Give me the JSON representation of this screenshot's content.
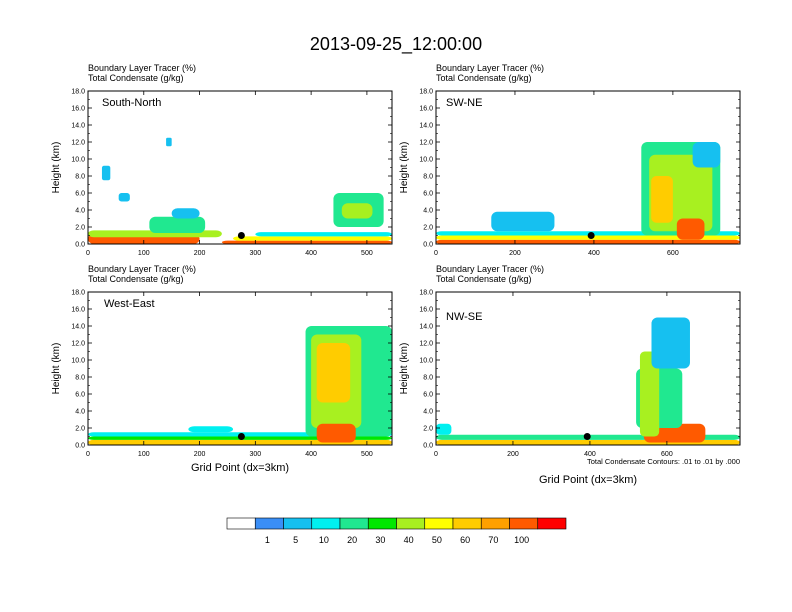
{
  "title": "2013-09-25_12:00:00",
  "note": "Total Condensate Contours: .01 to .01 by .000",
  "colorbar": {
    "labels": [
      "1",
      "5",
      "10",
      "20",
      "30",
      "40",
      "50",
      "60",
      "70",
      "100"
    ],
    "colors": [
      "#ffffff",
      "#3a8ef6",
      "#16c0f0",
      "#00f0f0",
      "#20e890",
      "#00e800",
      "#a8f020",
      "#ffff00",
      "#ffcc00",
      "#ffa000",
      "#ff5a00",
      "#ff0000"
    ]
  },
  "chart_data": [
    {
      "type": "heatmap",
      "panel_label": "South-North",
      "subtitle_1": "Boundary Layer Tracer   (%)",
      "subtitle_2": "Total Condensate   (g/kg)",
      "ylabel": "Height (km)",
      "xlabel": "",
      "xlim": [
        0,
        545
      ],
      "ylim": [
        0,
        18
      ],
      "xticks": [
        0,
        100,
        200,
        300,
        400,
        500
      ],
      "yticks": [
        "0.0",
        "2.0",
        "4.0",
        "6.0",
        "8.0",
        "10.0",
        "12.0",
        "14.0",
        "16.0",
        "18.0"
      ],
      "marker": [
        275,
        1.0
      ],
      "features": [
        {
          "x": [
            0,
            200
          ],
          "z": [
            0,
            1.2
          ],
          "level": 100
        },
        {
          "x": [
            0,
            240
          ],
          "z": [
            0.8,
            1.6
          ],
          "level": 40
        },
        {
          "x": [
            240,
            545
          ],
          "z": [
            0,
            0.4
          ],
          "level": 100
        },
        {
          "x": [
            260,
            545
          ],
          "z": [
            0.4,
            0.9
          ],
          "level": 50
        },
        {
          "x": [
            300,
            545
          ],
          "z": [
            0.9,
            1.4
          ],
          "level": 10
        },
        {
          "x": [
            110,
            210
          ],
          "z": [
            1.3,
            3.2
          ],
          "level": 20
        },
        {
          "x": [
            440,
            530
          ],
          "z": [
            2.0,
            6.0
          ],
          "level": 20
        },
        {
          "x": [
            455,
            510
          ],
          "z": [
            3.0,
            4.8
          ],
          "level": 40
        },
        {
          "x": [
            25,
            40
          ],
          "z": [
            7.5,
            9.2
          ],
          "level": 5
        },
        {
          "x": [
            55,
            75
          ],
          "z": [
            5.0,
            6.0
          ],
          "level": 5
        },
        {
          "x": [
            140,
            150
          ],
          "z": [
            11.5,
            12.5
          ],
          "level": 5
        },
        {
          "x": [
            150,
            200
          ],
          "z": [
            3.0,
            4.2
          ],
          "level": 5
        }
      ]
    },
    {
      "type": "heatmap",
      "panel_label": "SW-NE",
      "subtitle_1": "Boundary Layer Tracer   (%)",
      "subtitle_2": "Total Condensate   (g/kg)",
      "ylabel": "Height (km)",
      "xlabel": "",
      "xlim": [
        0,
        770
      ],
      "ylim": [
        0,
        18
      ],
      "xticks": [
        0,
        200,
        400,
        600
      ],
      "yticks": [
        "0.0",
        "2.0",
        "4.0",
        "6.0",
        "8.0",
        "10.0",
        "12.0",
        "14.0",
        "16.0",
        "18.0"
      ],
      "marker": [
        393,
        1.0
      ],
      "features": [
        {
          "x": [
            0,
            770
          ],
          "z": [
            0,
            0.5
          ],
          "level": 100
        },
        {
          "x": [
            0,
            770
          ],
          "z": [
            0.5,
            1.0
          ],
          "level": 50
        },
        {
          "x": [
            0,
            770
          ],
          "z": [
            1.0,
            1.5
          ],
          "level": 10
        },
        {
          "x": [
            140,
            300
          ],
          "z": [
            1.5,
            3.8
          ],
          "level": 5
        },
        {
          "x": [
            520,
            720
          ],
          "z": [
            1.0,
            12.0
          ],
          "level": 20
        },
        {
          "x": [
            540,
            700
          ],
          "z": [
            1.5,
            10.5
          ],
          "level": 40
        },
        {
          "x": [
            545,
            600
          ],
          "z": [
            2.5,
            8.0
          ],
          "level": 60
        },
        {
          "x": [
            610,
            680
          ],
          "z": [
            0.5,
            3.0
          ],
          "level": 100
        },
        {
          "x": [
            650,
            720
          ],
          "z": [
            9.0,
            12.0
          ],
          "level": 5
        }
      ]
    },
    {
      "type": "heatmap",
      "panel_label": "West-East",
      "subtitle_1": "Boundary Layer Tracer   (%)",
      "subtitle_2": "Total Condensate   (g/kg)",
      "ylabel": "Height (km)",
      "xlabel": "Grid Point (dx=3km)",
      "xlim": [
        0,
        545
      ],
      "ylim": [
        0,
        18
      ],
      "xticks": [
        0,
        100,
        200,
        300,
        400,
        500
      ],
      "yticks": [
        "0.0",
        "2.0",
        "4.0",
        "6.0",
        "8.0",
        "10.0",
        "12.0",
        "14.0",
        "16.0",
        "18.0"
      ],
      "marker": [
        275,
        1.0
      ],
      "features": [
        {
          "x": [
            0,
            545
          ],
          "z": [
            0,
            0.6
          ],
          "level": 60
        },
        {
          "x": [
            0,
            545
          ],
          "z": [
            0.6,
            1.0
          ],
          "level": 30
        },
        {
          "x": [
            0,
            545
          ],
          "z": [
            1.0,
            1.5
          ],
          "level": 10
        },
        {
          "x": [
            180,
            260
          ],
          "z": [
            1.5,
            2.2
          ],
          "level": 10
        },
        {
          "x": [
            390,
            545
          ],
          "z": [
            1.0,
            14.0
          ],
          "level": 20
        },
        {
          "x": [
            400,
            490
          ],
          "z": [
            2.0,
            13.0
          ],
          "level": 40
        },
        {
          "x": [
            410,
            470
          ],
          "z": [
            5.0,
            12.0
          ],
          "level": 60
        },
        {
          "x": [
            410,
            480
          ],
          "z": [
            0.3,
            2.5
          ],
          "level": 100
        }
      ]
    },
    {
      "type": "heatmap",
      "panel_label": "NW-SE",
      "subtitle_1": "Boundary Layer Tracer   (%)",
      "subtitle_2": "Total Condensate   (g/kg)",
      "ylabel": "Height (km)",
      "xlabel": "Grid Point (dx=3km)",
      "xlim": [
        0,
        790
      ],
      "ylim": [
        0,
        18
      ],
      "xticks": [
        0,
        200,
        400,
        600
      ],
      "yticks": [
        "0.0",
        "2.0",
        "4.0",
        "6.0",
        "8.0",
        "10.0",
        "12.0",
        "14.0",
        "16.0",
        "18.0"
      ],
      "marker": [
        393,
        1.0
      ],
      "features": [
        {
          "x": [
            0,
            790
          ],
          "z": [
            0,
            0.6
          ],
          "level": 60
        },
        {
          "x": [
            0,
            790
          ],
          "z": [
            0.6,
            1.2
          ],
          "level": 20
        },
        {
          "x": [
            0,
            40
          ],
          "z": [
            1.2,
            2.5
          ],
          "level": 10
        },
        {
          "x": [
            540,
            700
          ],
          "z": [
            0.3,
            2.5
          ],
          "level": 100
        },
        {
          "x": [
            520,
            640
          ],
          "z": [
            2.0,
            9.0
          ],
          "level": 20
        },
        {
          "x": [
            530,
            580
          ],
          "z": [
            1.0,
            11.0
          ],
          "level": 40
        },
        {
          "x": [
            560,
            660
          ],
          "z": [
            9.0,
            15.0
          ],
          "level": 5
        }
      ]
    }
  ]
}
